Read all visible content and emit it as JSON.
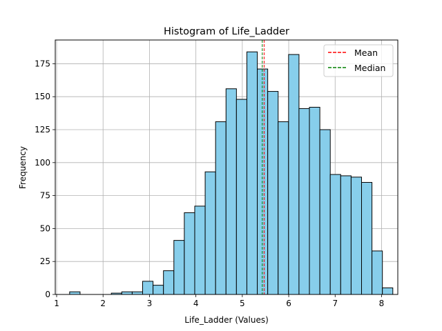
{
  "chart_data": {
    "type": "bar",
    "title": "Histogram of Life_Ladder",
    "xlabel": "Life_Ladder (Values)",
    "ylabel": "Frequency",
    "xlim": [
      0.97,
      8.35
    ],
    "ylim": [
      0,
      193
    ],
    "xticks": [
      1,
      2,
      3,
      4,
      5,
      6,
      7,
      8
    ],
    "yticks": [
      0,
      25,
      50,
      75,
      100,
      125,
      150,
      175
    ],
    "grid": true,
    "bin_start": 1.28,
    "bin_width": 0.2246,
    "values": [
      2,
      0,
      0,
      0,
      1,
      2,
      2,
      10,
      7,
      18,
      41,
      62,
      67,
      93,
      131,
      156,
      148,
      184,
      171,
      154,
      131,
      182,
      141,
      142,
      125,
      91,
      90,
      89,
      85,
      33,
      5
    ],
    "bar_color": "#87CEEB",
    "edge_color": "#000000",
    "reference_lines": [
      {
        "name": "Mean",
        "x": 5.47,
        "color": "#ff0000"
      },
      {
        "name": "Median",
        "x": 5.43,
        "color": "#008000"
      }
    ],
    "legend_position": "top-right"
  }
}
